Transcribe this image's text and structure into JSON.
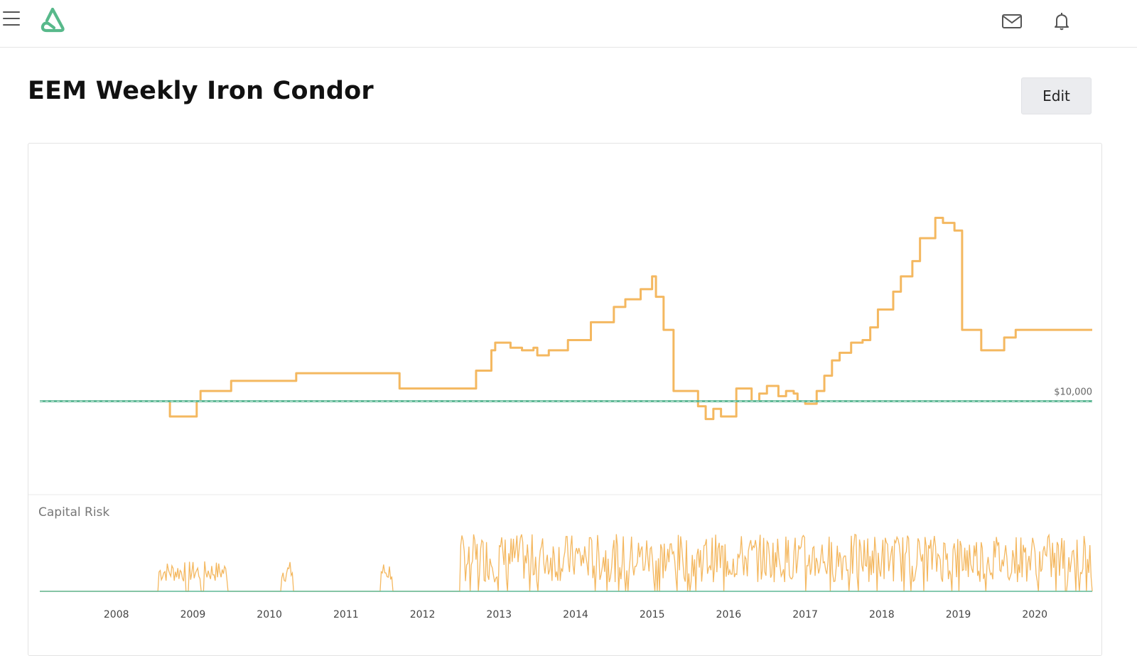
{
  "header": {
    "menu_icon": "hamburger-menu-icon",
    "logo_icon": "app-logo-icon",
    "mail_icon": "mail-icon",
    "bell_icon": "bell-icon"
  },
  "page": {
    "title": "EEM Weekly Iron Condor",
    "edit_label": "Edit"
  },
  "colors": {
    "equity_line": "#f4b860",
    "baseline": "#5fb896",
    "logo": "#58b98b",
    "risk_line": "#f4b860"
  },
  "chart_data": [
    {
      "type": "line",
      "name": "equity-curve",
      "baseline_label": "$10,000",
      "baseline_value": 10000,
      "xlim": [
        2007.0,
        2020.75
      ],
      "ylim": [
        7000,
        19000
      ],
      "grid": false,
      "x": [
        2008.6,
        2008.7,
        2009.0,
        2009.05,
        2009.1,
        2009.4,
        2009.5,
        2010.3,
        2010.35,
        2011.65,
        2011.7,
        2012.6,
        2012.7,
        2012.9,
        2012.95,
        2013.15,
        2013.3,
        2013.45,
        2013.5,
        2013.65,
        2013.9,
        2014.2,
        2014.5,
        2014.65,
        2014.85,
        2015.0,
        2015.05,
        2015.15,
        2015.28,
        2015.45,
        2015.6,
        2015.7,
        2015.8,
        2015.9,
        2016.1,
        2016.3,
        2016.4,
        2016.5,
        2016.65,
        2016.75,
        2016.85,
        2016.9,
        2017.0,
        2017.15,
        2017.25,
        2017.35,
        2017.45,
        2017.6,
        2017.75,
        2017.85,
        2017.95,
        2018.15,
        2018.25,
        2018.4,
        2018.5,
        2018.7,
        2018.8,
        2018.95,
        2019.05,
        2019.15,
        2019.3,
        2019.45,
        2019.6,
        2019.75,
        2019.85,
        2019.9,
        2019.97,
        2020.05,
        2020.15,
        2020.2,
        2020.3,
        2020.5,
        2020.65,
        2020.75
      ],
      "y": [
        10000,
        9400,
        9400,
        10000,
        10400,
        10400,
        10800,
        10800,
        11100,
        11100,
        10500,
        10500,
        11200,
        12000,
        12300,
        12100,
        12000,
        12100,
        11800,
        12000,
        12400,
        13100,
        13700,
        14000,
        14400,
        14900,
        14100,
        12800,
        10400,
        10400,
        9800,
        9300,
        9700,
        9400,
        10500,
        10000,
        10300,
        10600,
        10200,
        10400,
        10300,
        10000,
        9900,
        10400,
        11000,
        11600,
        11900,
        12300,
        12400,
        12900,
        13600,
        14300,
        14900,
        15500,
        16400,
        17200,
        17000,
        16700,
        12800,
        12800,
        12000,
        12000,
        12500,
        12800,
        12800,
        12800,
        12800,
        12800,
        12800,
        12800,
        12800,
        12800,
        12800,
        12800
      ]
    },
    {
      "type": "line",
      "name": "capital-risk",
      "title": "Capital Risk",
      "ylim": [
        0,
        1
      ],
      "x_tick_labels": [
        "2008",
        "2009",
        "2010",
        "2011",
        "2012",
        "2013",
        "2014",
        "2015",
        "2016",
        "2017",
        "2018",
        "2019",
        "2020"
      ],
      "x_tick_values": [
        2008,
        2009,
        2010,
        2011,
        2012,
        2013,
        2014,
        2015,
        2016,
        2017,
        2018,
        2019,
        2020
      ],
      "active_periods": [
        [
          2008.55,
          2008.9
        ],
        [
          2008.95,
          2009.1
        ],
        [
          2009.15,
          2009.45
        ],
        [
          2010.15,
          2010.3
        ],
        [
          2011.45,
          2011.6
        ],
        [
          2012.5,
          2020.75
        ]
      ],
      "levels": {
        "low": 0.15,
        "high": 0.95
      }
    }
  ]
}
